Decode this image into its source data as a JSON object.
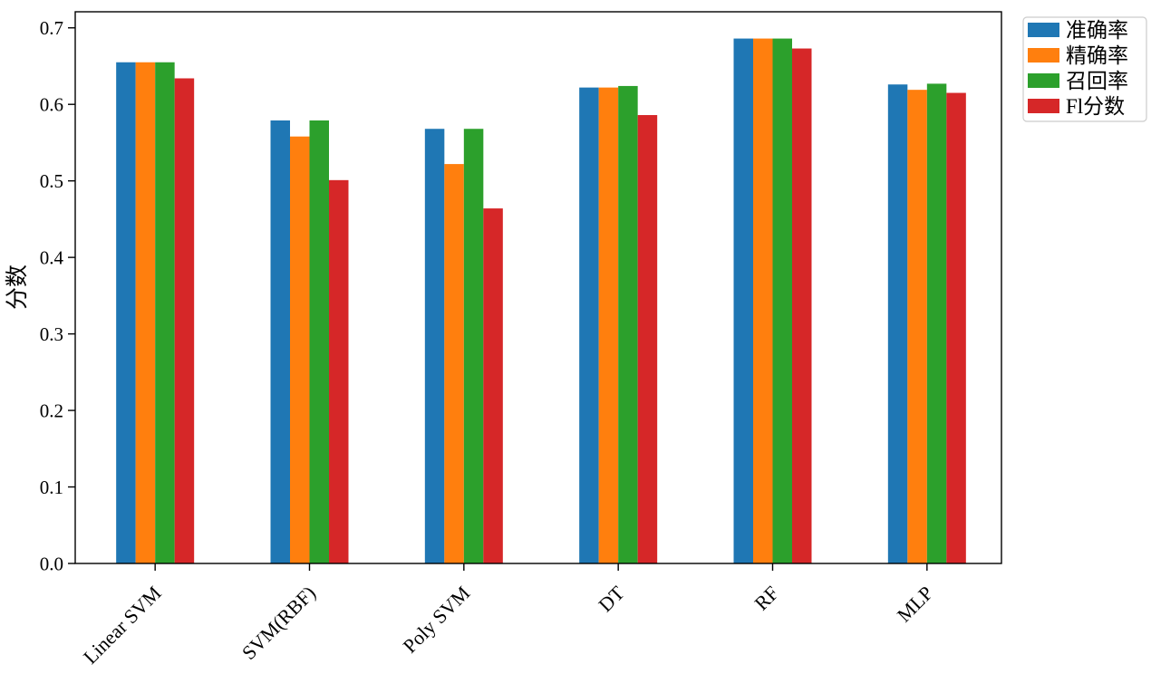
{
  "chart_data": {
    "type": "bar",
    "title": "",
    "xlabel": "",
    "ylabel": "分数",
    "categories": [
      "Linear SVM",
      "SVM(RBF)",
      "Poly SVM",
      "DT",
      "RF",
      "MLP"
    ],
    "series": [
      {
        "name": "准确率",
        "color": "#1f77b4",
        "values": [
          0.655,
          0.579,
          0.568,
          0.622,
          0.686,
          0.626
        ]
      },
      {
        "name": "精确率",
        "color": "#ff7f0e",
        "values": [
          0.655,
          0.558,
          0.522,
          0.622,
          0.686,
          0.619
        ]
      },
      {
        "name": "召回率",
        "color": "#2ca02c",
        "values": [
          0.655,
          0.579,
          0.568,
          0.624,
          0.686,
          0.627
        ]
      },
      {
        "name": "Fl分数",
        "color": "#d62728",
        "values": [
          0.634,
          0.501,
          0.464,
          0.586,
          0.673,
          0.615
        ]
      }
    ],
    "ylim": [
      0.0,
      0.721
    ],
    "yticks": [
      0.0,
      0.1,
      0.2,
      0.3,
      0.4,
      0.5,
      0.6,
      0.7
    ],
    "grid": false,
    "legend_position": "upper-right-outside",
    "x_tick_label_rotation_deg": 45,
    "axis_color": "#000000",
    "legend_border_color": "#cccccc",
    "background_color": "#ffffff"
  }
}
